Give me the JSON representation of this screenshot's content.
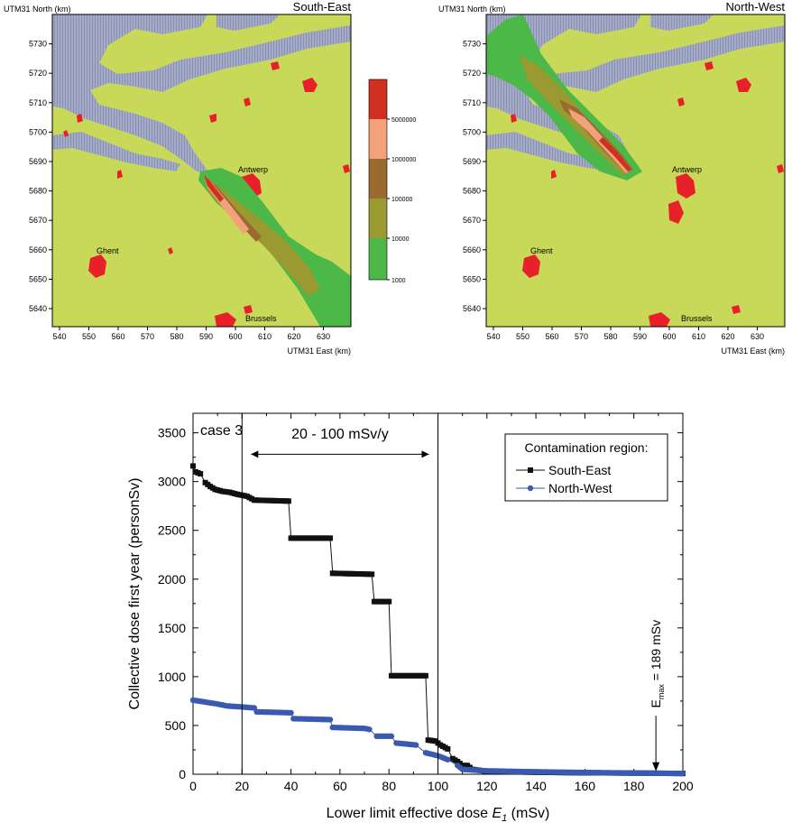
{
  "colors": {
    "background_land": "#c8d95a",
    "water": "#a0a8c8",
    "urban": "#e8202a",
    "band_1000": "#4cb848",
    "band_10000": "#9a9a30",
    "band_100000": "#9a6a30",
    "band_1000000": "#f4a07a",
    "band_5000000": "#d03020",
    "south_east": "#111111",
    "north_west": "#3a5ab0"
  },
  "maps": [
    {
      "title": "South-East",
      "ylabel": "UTM31 North (km)",
      "xlabel": "UTM31 East (km)",
      "xticks": [
        "540",
        "550",
        "560",
        "570",
        "580",
        "590",
        "600",
        "610",
        "620",
        "630"
      ],
      "yticks": [
        "5640",
        "5650",
        "5660",
        "5670",
        "5680",
        "5690",
        "5700",
        "5710",
        "5720",
        "5730"
      ],
      "cities": [
        "Antwerp",
        "Ghent",
        "Brussels"
      ]
    },
    {
      "title": "North-West",
      "ylabel": "UTM31 North (km)",
      "xlabel": "UTM31 East (km)",
      "xticks": [
        "540",
        "550",
        "560",
        "570",
        "580",
        "590",
        "600",
        "610",
        "620",
        "630"
      ],
      "yticks": [
        "5640",
        "5650",
        "5660",
        "5670",
        "5680",
        "5690",
        "5700",
        "5710",
        "5720",
        "5730"
      ],
      "cities": [
        "Antwerp",
        "Ghent",
        "Brussels"
      ]
    }
  ],
  "colorbar": {
    "labels": [
      "5000000",
      "1000000",
      "100000",
      "10000",
      "1000"
    ]
  },
  "chart_data": {
    "type": "line",
    "xlabel": "Lower limit effective dose E₁ (mSv)",
    "xlabel_main": "Lower limit effective dose ",
    "xlabel_var": "E",
    "xlabel_sub": "1",
    "xlabel_unit": "  (mSv)",
    "ylabel": "Collective dose first year (personSv)",
    "xlim": [
      0,
      200
    ],
    "ylim": [
      0,
      3700
    ],
    "xticks": [
      0,
      20,
      40,
      60,
      80,
      100,
      120,
      140,
      160,
      180,
      200
    ],
    "yticks": [
      0,
      500,
      1000,
      1500,
      2000,
      2500,
      3000,
      3500
    ],
    "case_label": "case 3",
    "range_annotation": "20 - 100 mSv/y",
    "range_bounds": [
      20,
      100
    ],
    "emax_annotation": {
      "prefix": "E",
      "sub": "max",
      "suffix": " = 189 mSv",
      "x": 189
    },
    "legend_title": "Contamination region:",
    "legend_position": "top-right",
    "series": [
      {
        "name": "South-East",
        "marker": "square",
        "points": [
          [
            0,
            3160
          ],
          [
            1,
            3100
          ],
          [
            3,
            3080
          ],
          [
            5,
            2990
          ],
          [
            7,
            2950
          ],
          [
            9,
            2920
          ],
          [
            12,
            2900
          ],
          [
            15,
            2890
          ],
          [
            18,
            2870
          ],
          [
            22,
            2850
          ],
          [
            25,
            2810
          ],
          [
            39,
            2800
          ],
          [
            40,
            2420
          ],
          [
            56,
            2420
          ],
          [
            57,
            2060
          ],
          [
            73,
            2050
          ],
          [
            74,
            1770
          ],
          [
            80,
            1770
          ],
          [
            81,
            1010
          ],
          [
            95,
            1010
          ],
          [
            96,
            350
          ],
          [
            99,
            340
          ],
          [
            101,
            300
          ],
          [
            104,
            260
          ],
          [
            106,
            160
          ],
          [
            108,
            130
          ],
          [
            110,
            90
          ],
          [
            112,
            90
          ],
          [
            114,
            50
          ],
          [
            120,
            30
          ],
          [
            140,
            20
          ],
          [
            160,
            15
          ],
          [
            180,
            12
          ],
          [
            200,
            8
          ]
        ]
      },
      {
        "name": "North-West",
        "marker": "circle",
        "points": [
          [
            0,
            760
          ],
          [
            5,
            740
          ],
          [
            10,
            720
          ],
          [
            14,
            700
          ],
          [
            20,
            690
          ],
          [
            25,
            680
          ],
          [
            26,
            640
          ],
          [
            40,
            630
          ],
          [
            41,
            570
          ],
          [
            56,
            560
          ],
          [
            57,
            480
          ],
          [
            70,
            470
          ],
          [
            72,
            460
          ],
          [
            75,
            390
          ],
          [
            81,
            390
          ],
          [
            83,
            320
          ],
          [
            91,
            300
          ],
          [
            95,
            220
          ],
          [
            100,
            190
          ],
          [
            104,
            150
          ],
          [
            108,
            90
          ],
          [
            110,
            50
          ],
          [
            120,
            35
          ],
          [
            140,
            25
          ],
          [
            160,
            18
          ],
          [
            180,
            12
          ],
          [
            200,
            8
          ]
        ]
      }
    ]
  }
}
